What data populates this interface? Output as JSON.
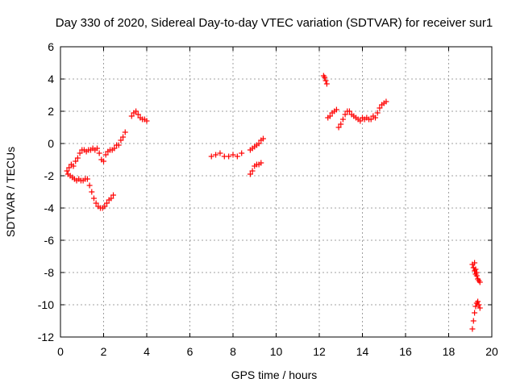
{
  "chart_data": {
    "type": "scatter",
    "title": "Day 330 of 2020, Sidereal Day-to-day VTEC variation (SDTVAR) for receiver sur1",
    "xlabel": "GPS time / hours",
    "ylabel": "SDTVAR / TECUs",
    "xlim": [
      0,
      20
    ],
    "ylim": [
      -12,
      6
    ],
    "xticks": [
      "0",
      "2",
      "4",
      "6",
      "8",
      "10",
      "12",
      "14",
      "16",
      "18",
      "20"
    ],
    "yticks": [
      "-12",
      "-10",
      "-8",
      "-6",
      "-4",
      "-2",
      "0",
      "2",
      "4",
      "6"
    ],
    "grid": true,
    "marker": "+",
    "color": "#ff0000",
    "segments": [
      [
        [
          0.3,
          -1.7
        ],
        [
          0.4,
          -1.5
        ],
        [
          0.5,
          -1.3
        ],
        [
          0.6,
          -1.4
        ],
        [
          0.7,
          -1.1
        ],
        [
          0.8,
          -0.9
        ],
        [
          0.9,
          -0.6
        ],
        [
          1.0,
          -0.4
        ],
        [
          1.1,
          -0.4
        ],
        [
          1.2,
          -0.5
        ],
        [
          1.3,
          -0.4
        ],
        [
          1.4,
          -0.4
        ],
        [
          1.5,
          -0.3
        ],
        [
          1.6,
          -0.4
        ],
        [
          1.7,
          -0.3
        ],
        [
          1.8,
          -0.6
        ],
        [
          1.9,
          -1.0
        ],
        [
          2.0,
          -1.1
        ],
        [
          2.1,
          -0.7
        ],
        [
          2.2,
          -0.5
        ],
        [
          2.3,
          -0.4
        ],
        [
          2.4,
          -0.4
        ],
        [
          2.5,
          -0.3
        ],
        [
          2.6,
          -0.1
        ],
        [
          2.7,
          -0.1
        ],
        [
          2.8,
          0.2
        ],
        [
          2.9,
          0.4
        ],
        [
          3.0,
          0.7
        ]
      ],
      [
        [
          0.35,
          -1.9
        ],
        [
          0.45,
          -2.0
        ],
        [
          0.55,
          -2.1
        ],
        [
          0.65,
          -2.2
        ],
        [
          0.75,
          -2.3
        ],
        [
          0.85,
          -2.2
        ],
        [
          0.95,
          -2.3
        ],
        [
          1.05,
          -2.3
        ],
        [
          1.15,
          -2.2
        ],
        [
          1.25,
          -2.2
        ],
        [
          1.35,
          -2.6
        ],
        [
          1.45,
          -3.0
        ],
        [
          1.55,
          -3.4
        ],
        [
          1.65,
          -3.7
        ],
        [
          1.75,
          -3.9
        ],
        [
          1.85,
          -4.0
        ],
        [
          1.95,
          -4.0
        ],
        [
          2.05,
          -3.9
        ],
        [
          2.15,
          -3.7
        ],
        [
          2.25,
          -3.5
        ],
        [
          2.35,
          -3.4
        ],
        [
          2.45,
          -3.2
        ]
      ],
      [
        [
          3.3,
          1.7
        ],
        [
          3.4,
          1.9
        ],
        [
          3.5,
          2.0
        ],
        [
          3.6,
          1.8
        ],
        [
          3.7,
          1.6
        ],
        [
          3.8,
          1.5
        ],
        [
          3.9,
          1.5
        ],
        [
          4.0,
          1.4
        ]
      ],
      [
        [
          7.0,
          -0.8
        ],
        [
          7.2,
          -0.7
        ],
        [
          7.4,
          -0.6
        ],
        [
          7.6,
          -0.8
        ],
        [
          7.8,
          -0.8
        ],
        [
          8.0,
          -0.7
        ],
        [
          8.2,
          -0.8
        ],
        [
          8.4,
          -0.6
        ]
      ],
      [
        [
          8.8,
          -0.4
        ],
        [
          8.9,
          -0.3
        ],
        [
          9.0,
          -0.2
        ],
        [
          9.1,
          -0.1
        ],
        [
          9.2,
          0.0
        ],
        [
          9.3,
          0.2
        ],
        [
          9.4,
          0.3
        ]
      ],
      [
        [
          8.8,
          -1.9
        ],
        [
          8.9,
          -1.7
        ],
        [
          9.0,
          -1.4
        ],
        [
          9.1,
          -1.3
        ],
        [
          9.2,
          -1.3
        ],
        [
          9.3,
          -1.2
        ]
      ],
      [
        [
          12.2,
          4.2
        ],
        [
          12.25,
          4.1
        ],
        [
          12.3,
          3.9
        ],
        [
          12.35,
          3.7
        ]
      ],
      [
        [
          12.4,
          1.6
        ],
        [
          12.5,
          1.7
        ],
        [
          12.6,
          1.9
        ],
        [
          12.7,
          2.0
        ],
        [
          12.8,
          2.1
        ]
      ],
      [
        [
          12.9,
          1.0
        ],
        [
          13.0,
          1.2
        ],
        [
          13.1,
          1.5
        ],
        [
          13.2,
          1.8
        ],
        [
          13.3,
          2.0
        ],
        [
          13.4,
          2.0
        ],
        [
          13.5,
          1.8
        ],
        [
          13.6,
          1.7
        ],
        [
          13.7,
          1.6
        ],
        [
          13.8,
          1.5
        ],
        [
          13.9,
          1.4
        ],
        [
          14.0,
          1.6
        ],
        [
          14.1,
          1.5
        ],
        [
          14.2,
          1.6
        ],
        [
          14.3,
          1.5
        ],
        [
          14.4,
          1.5
        ],
        [
          14.5,
          1.7
        ],
        [
          14.6,
          1.6
        ],
        [
          14.7,
          1.9
        ],
        [
          14.8,
          2.2
        ],
        [
          14.9,
          2.4
        ],
        [
          15.0,
          2.5
        ],
        [
          15.1,
          2.6
        ]
      ],
      [
        [
          19.1,
          -7.5
        ],
        [
          19.15,
          -7.7
        ],
        [
          19.2,
          -7.9
        ],
        [
          19.25,
          -8.1
        ],
        [
          19.3,
          -8.2
        ],
        [
          19.35,
          -8.4
        ],
        [
          19.4,
          -8.5
        ],
        [
          19.45,
          -8.6
        ]
      ],
      [
        [
          19.2,
          -7.4
        ],
        [
          19.25,
          -7.8
        ],
        [
          19.3,
          -8.0
        ]
      ],
      [
        [
          19.1,
          -11.5
        ],
        [
          19.15,
          -11.0
        ],
        [
          19.2,
          -10.5
        ],
        [
          19.25,
          -10.1
        ],
        [
          19.3,
          -9.9
        ],
        [
          19.35,
          -9.8
        ],
        [
          19.4,
          -10.0
        ],
        [
          19.45,
          -10.2
        ]
      ]
    ]
  }
}
